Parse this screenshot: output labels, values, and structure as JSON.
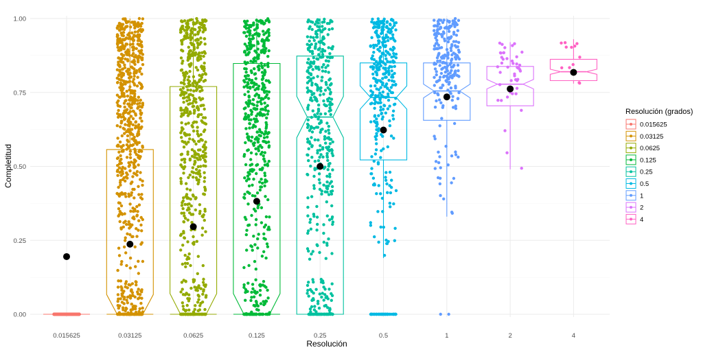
{
  "chart_data": {
    "type": "boxplot",
    "xlabel": "Resolución",
    "ylabel": "Completitud",
    "legend_title": "Resolución (grados)",
    "legend_position": "right",
    "grid": true,
    "ylim": [
      0,
      1
    ],
    "y_ticks": [
      "0.00",
      "0.25",
      "0.50",
      "0.75",
      "1.00"
    ],
    "categories": [
      "0.015625",
      "0.03125",
      "0.0625",
      "0.125",
      "0.25",
      "0.5",
      "1",
      "2",
      "4"
    ],
    "colors": [
      "#F8766D",
      "#D39200",
      "#93AA00",
      "#00BA38",
      "#00C19F",
      "#00B9E3",
      "#619CFF",
      "#DB72FB",
      "#FF61C3"
    ],
    "series": [
      {
        "category": "0.015625",
        "q1": 0.0,
        "median": 0.0,
        "q3": 0.0,
        "whisker_low": 0.0,
        "whisker_high": 0.0,
        "mean": 0.195
      },
      {
        "category": "0.03125",
        "q1": 0.0,
        "median": 0.0,
        "q3": 0.557,
        "whisker_low": 0.0,
        "whisker_high": 1.0,
        "mean": 0.237
      },
      {
        "category": "0.0625",
        "q1": 0.0,
        "median": 0.0,
        "q3": 0.77,
        "whisker_low": 0.0,
        "whisker_high": 1.0,
        "mean": 0.296
      },
      {
        "category": "0.125",
        "q1": 0.0,
        "median": 0.0,
        "q3": 0.848,
        "whisker_low": 0.0,
        "whisker_high": 1.0,
        "mean": 0.382
      },
      {
        "category": "0.25",
        "q1": 0.0,
        "median": 0.667,
        "q3": 0.873,
        "whisker_low": 0.0,
        "whisker_high": 1.0,
        "mean": 0.5
      },
      {
        "category": "0.5",
        "q1": 0.522,
        "median": 0.733,
        "q3": 0.85,
        "whisker_low": 0.19,
        "whisker_high": 1.0,
        "mean": 0.623
      },
      {
        "category": "1",
        "q1": 0.656,
        "median": 0.755,
        "q3": 0.85,
        "whisker_low": 0.33,
        "whisker_high": 1.0,
        "mean": 0.735
      },
      {
        "category": "2",
        "q1": 0.705,
        "median": 0.778,
        "q3": 0.838,
        "whisker_low": 0.49,
        "whisker_high": 0.92,
        "mean": 0.762
      },
      {
        "category": "4",
        "q1": 0.79,
        "median": 0.82,
        "q3": 0.862,
        "whisker_low": 0.78,
        "whisker_high": 0.93,
        "mean": 0.818
      }
    ],
    "points_per_category": [
      900,
      780,
      620,
      560,
      460,
      380,
      240,
      45,
      12
    ]
  }
}
